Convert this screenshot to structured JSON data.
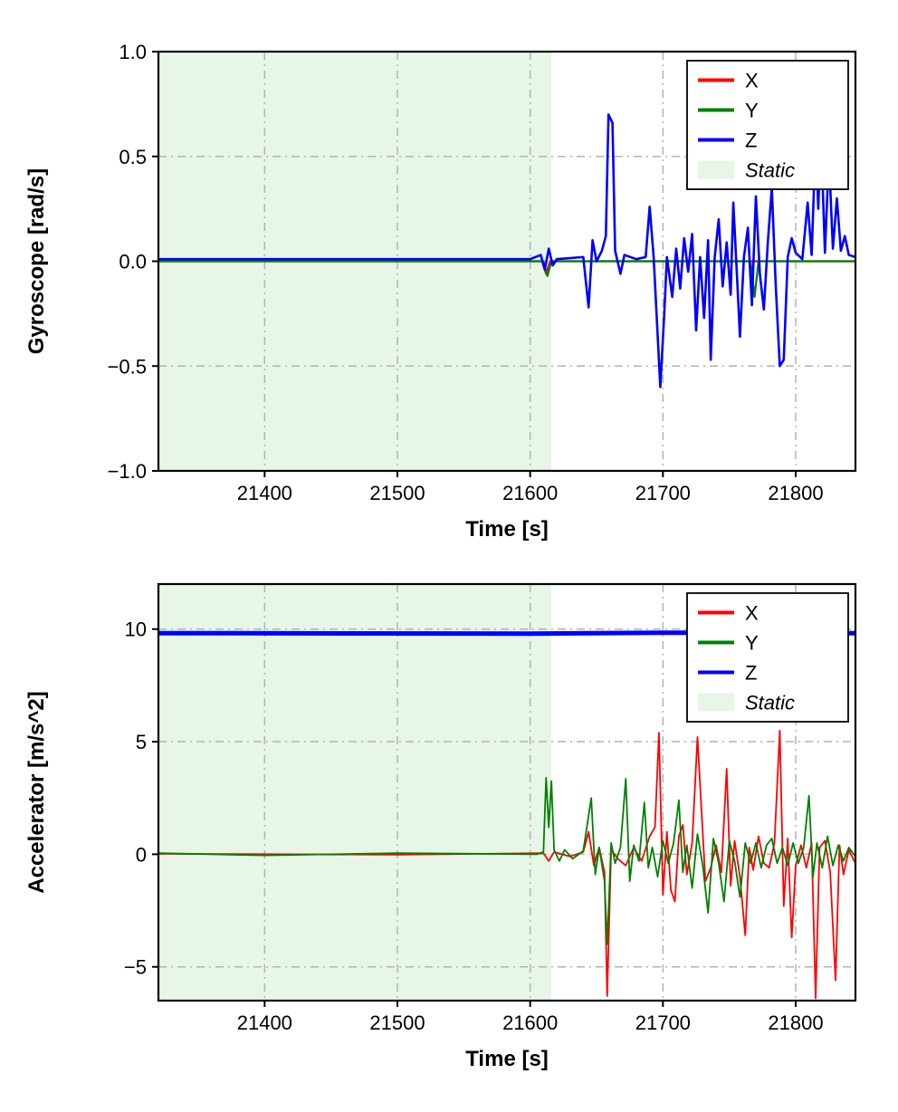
{
  "page": {
    "background": "#ffffff"
  },
  "chart_data": [
    {
      "type": "line",
      "title": "",
      "xlabel": "Time [s]",
      "ylabel": "Gyroscope [rad/s]",
      "xlim": [
        21320,
        21845
      ],
      "ylim": [
        -1.0,
        1.0
      ],
      "xticks": [
        21400,
        21500,
        21600,
        21700,
        21800
      ],
      "xtick_labels": [
        "21400",
        "21500",
        "21600",
        "21700",
        "21800"
      ],
      "yticks": [
        1.0,
        0.5,
        0.0,
        -0.5,
        -1.0
      ],
      "ytick_labels": [
        "1.0",
        "0.5",
        "0.0",
        "−0.5",
        "−1.0"
      ],
      "grid": "dash-dot",
      "grid_color": "#b3b3b3",
      "static_region": {
        "x0": 21320,
        "x1": 21616,
        "color": "#e7f6e7",
        "label": "Static"
      },
      "legend": {
        "position": "upper-right",
        "entries": [
          {
            "label": "X",
            "color": "#ff0000",
            "kind": "line",
            "italic": false
          },
          {
            "label": "Y",
            "color": "#008000",
            "kind": "line",
            "italic": false
          },
          {
            "label": "Z",
            "color": "#0000ff",
            "kind": "line",
            "italic": false
          },
          {
            "label": "Static",
            "color": "#e7f6e7",
            "kind": "patch",
            "italic": true
          }
        ]
      },
      "series": [
        {
          "name": "X",
          "color": "#ff0000",
          "width": 2.2,
          "points": [
            [
              21320,
              0
            ],
            [
              21609,
              0
            ],
            [
              21612,
              -0.06
            ],
            [
              21615,
              0
            ],
            [
              21845,
              0
            ]
          ]
        },
        {
          "name": "Y",
          "color": "#008000",
          "width": 2.2,
          "points": [
            [
              21320,
              0
            ],
            [
              21610,
              0
            ],
            [
              21613,
              -0.07
            ],
            [
              21616,
              0
            ],
            [
              21766,
              0
            ],
            [
              21769,
              -0.17
            ],
            [
              21772,
              0
            ],
            [
              21845,
              0
            ]
          ]
        },
        {
          "name": "Z",
          "color": "#0000ff",
          "width": 2.6,
          "points": [
            [
              21320,
              0.01
            ],
            [
              21500,
              0.01
            ],
            [
              21600,
              0.01
            ],
            [
              21608,
              0.03
            ],
            [
              21611,
              -0.04
            ],
            [
              21614,
              0.06
            ],
            [
              21617,
              -0.02
            ],
            [
              21620,
              0.01
            ],
            [
              21640,
              0.02
            ],
            [
              21644,
              -0.22
            ],
            [
              21647,
              0.1
            ],
            [
              21650,
              0
            ],
            [
              21654,
              0.05
            ],
            [
              21657,
              0.12
            ],
            [
              21659,
              0.7
            ],
            [
              21662,
              0.66
            ],
            [
              21664,
              0.05
            ],
            [
              21668,
              -0.06
            ],
            [
              21671,
              0.03
            ],
            [
              21680,
              0.01
            ],
            [
              21687,
              0.02
            ],
            [
              21690,
              0.26
            ],
            [
              21693,
              0.02
            ],
            [
              21696,
              -0.35
            ],
            [
              21698,
              -0.6
            ],
            [
              21701,
              -0.25
            ],
            [
              21703,
              0.02
            ],
            [
              21707,
              -0.17
            ],
            [
              21710,
              0.06
            ],
            [
              21713,
              -0.13
            ],
            [
              21716,
              0.11
            ],
            [
              21719,
              -0.05
            ],
            [
              21722,
              0.13
            ],
            [
              21725,
              -0.33
            ],
            [
              21728,
              0.02
            ],
            [
              21731,
              -0.27
            ],
            [
              21734,
              0.1
            ],
            [
              21736,
              -0.47
            ],
            [
              21739,
              0.02
            ],
            [
              21742,
              0.2
            ],
            [
              21745,
              -0.12
            ],
            [
              21748,
              0.09
            ],
            [
              21751,
              -0.16
            ],
            [
              21753,
              0.28
            ],
            [
              21756,
              -0.1
            ],
            [
              21758,
              -0.36
            ],
            [
              21761,
              0.02
            ],
            [
              21764,
              0.16
            ],
            [
              21767,
              -0.21
            ],
            [
              21770,
              0.31
            ],
            [
              21773,
              -0.06
            ],
            [
              21776,
              -0.23
            ],
            [
              21779,
              0.09
            ],
            [
              21782,
              0.35
            ],
            [
              21785,
              -0.12
            ],
            [
              21788,
              -0.5
            ],
            [
              21791,
              -0.47
            ],
            [
              21794,
              0.02
            ],
            [
              21797,
              0.11
            ],
            [
              21800,
              0.04
            ],
            [
              21805,
              0.01
            ],
            [
              21809,
              0.28
            ],
            [
              21812,
              0.03
            ],
            [
              21815,
              0.58
            ],
            [
              21817,
              0.25
            ],
            [
              21819,
              0.62
            ],
            [
              21822,
              0.04
            ],
            [
              21825,
              0.5
            ],
            [
              21828,
              0.06
            ],
            [
              21831,
              0.3
            ],
            [
              21834,
              0.05
            ],
            [
              21837,
              0.12
            ],
            [
              21840,
              0.03
            ],
            [
              21845,
              0.02
            ]
          ]
        }
      ]
    },
    {
      "type": "line",
      "title": "",
      "xlabel": "Time [s]",
      "ylabel": "Accelerator [m/s^2]",
      "xlim": [
        21320,
        21845
      ],
      "ylim": [
        -6.5,
        12
      ],
      "xticks": [
        21400,
        21500,
        21600,
        21700,
        21800
      ],
      "xtick_labels": [
        "21400",
        "21500",
        "21600",
        "21700",
        "21800"
      ],
      "yticks": [
        10,
        5,
        0,
        -5
      ],
      "ytick_labels": [
        "10",
        "5",
        "0",
        "−5"
      ],
      "grid": "dash-dot",
      "grid_color": "#b3b3b3",
      "static_region": {
        "x0": 21320,
        "x1": 21616,
        "color": "#e7f6e7",
        "label": "Static"
      },
      "legend": {
        "position": "upper-right",
        "entries": [
          {
            "label": "X",
            "color": "#ff0000",
            "kind": "line",
            "italic": false
          },
          {
            "label": "Y",
            "color": "#008000",
            "kind": "line",
            "italic": false
          },
          {
            "label": "Z",
            "color": "#0000ff",
            "kind": "line",
            "italic": false
          },
          {
            "label": "Static",
            "color": "#e7f6e7",
            "kind": "patch",
            "italic": true
          }
        ]
      },
      "series": [
        {
          "name": "X",
          "color": "#ff0000",
          "width": 1.8,
          "points": [
            [
              21320,
              0.02
            ],
            [
              21500,
              -0.02
            ],
            [
              21610,
              0.05
            ],
            [
              21614,
              -0.3
            ],
            [
              21618,
              0.1
            ],
            [
              21630,
              -0.1
            ],
            [
              21640,
              0.1
            ],
            [
              21644,
              1.0
            ],
            [
              21648,
              -0.5
            ],
            [
              21652,
              0.3
            ],
            [
              21656,
              -0.8
            ],
            [
              21658,
              -6.3
            ],
            [
              21661,
              0.2
            ],
            [
              21666,
              -0.2
            ],
            [
              21672,
              -0.5
            ],
            [
              21678,
              0.3
            ],
            [
              21684,
              -0.3
            ],
            [
              21690,
              0.8
            ],
            [
              21694,
              1.2
            ],
            [
              21697,
              5.4
            ],
            [
              21700,
              -1.8
            ],
            [
              21703,
              1.0
            ],
            [
              21706,
              -1.6
            ],
            [
              21709,
              -2.1
            ],
            [
              21712,
              0.8
            ],
            [
              21715,
              1.3
            ],
            [
              21718,
              -0.9
            ],
            [
              21722,
              0.5
            ],
            [
              21726,
              5.2
            ],
            [
              21729,
              2.0
            ],
            [
              21732,
              -1.2
            ],
            [
              21736,
              -0.6
            ],
            [
              21740,
              0.4
            ],
            [
              21744,
              -0.8
            ],
            [
              21748,
              3.8
            ],
            [
              21751,
              -1.4
            ],
            [
              21754,
              0.6
            ],
            [
              21758,
              -1.0
            ],
            [
              21762,
              -3.6
            ],
            [
              21765,
              0.3
            ],
            [
              21768,
              -0.7
            ],
            [
              21772,
              0.8
            ],
            [
              21776,
              -0.4
            ],
            [
              21780,
              -0.6
            ],
            [
              21784,
              0.5
            ],
            [
              21788,
              5.5
            ],
            [
              21791,
              -2.3
            ],
            [
              21794,
              0.7
            ],
            [
              21797,
              -3.7
            ],
            [
              21800,
              -0.5
            ],
            [
              21804,
              0.4
            ],
            [
              21808,
              -0.6
            ],
            [
              21812,
              0.5
            ],
            [
              21815,
              -6.4
            ],
            [
              21818,
              0.3
            ],
            [
              21822,
              0.6
            ],
            [
              21826,
              -0.8
            ],
            [
              21830,
              -5.6
            ],
            [
              21833,
              0.4
            ],
            [
              21836,
              -0.9
            ],
            [
              21840,
              0.2
            ],
            [
              21845,
              -0.4
            ]
          ]
        },
        {
          "name": "Y",
          "color": "#008000",
          "width": 1.8,
          "points": [
            [
              21320,
              0.05
            ],
            [
              21400,
              -0.05
            ],
            [
              21500,
              0.05
            ],
            [
              21605,
              0
            ],
            [
              21610,
              0.1
            ],
            [
              21612,
              3.4
            ],
            [
              21614,
              1.2
            ],
            [
              21616,
              3.25
            ],
            [
              21618,
              0.2
            ],
            [
              21622,
              -0.3
            ],
            [
              21626,
              0.2
            ],
            [
              21632,
              -0.2
            ],
            [
              21640,
              0.15
            ],
            [
              21646,
              2.5
            ],
            [
              21649,
              -0.9
            ],
            [
              21652,
              0.3
            ],
            [
              21656,
              -1.2
            ],
            [
              21658,
              -4.0
            ],
            [
              21661,
              0.5
            ],
            [
              21664,
              -0.4
            ],
            [
              21668,
              0.3
            ],
            [
              21672,
              3.35
            ],
            [
              21675,
              -1.2
            ],
            [
              21678,
              0.4
            ],
            [
              21682,
              -0.3
            ],
            [
              21686,
              2.3
            ],
            [
              21689,
              -0.6
            ],
            [
              21692,
              0.3
            ],
            [
              21696,
              -1.0
            ],
            [
              21700,
              0.6
            ],
            [
              21704,
              -0.4
            ],
            [
              21708,
              0.5
            ],
            [
              21712,
              2.4
            ],
            [
              21715,
              -0.8
            ],
            [
              21718,
              0.4
            ],
            [
              21722,
              -1.5
            ],
            [
              21726,
              0.9
            ],
            [
              21730,
              -0.5
            ],
            [
              21734,
              -2.6
            ],
            [
              21738,
              0.7
            ],
            [
              21742,
              -0.4
            ],
            [
              21746,
              -2.1
            ],
            [
              21750,
              0.6
            ],
            [
              21754,
              -0.3
            ],
            [
              21758,
              -1.9
            ],
            [
              21762,
              0.5
            ],
            [
              21766,
              -0.4
            ],
            [
              21770,
              0.5
            ],
            [
              21774,
              -0.6
            ],
            [
              21778,
              0.4
            ],
            [
              21782,
              0.7
            ],
            [
              21786,
              -0.4
            ],
            [
              21790,
              0.3
            ],
            [
              21794,
              -0.5
            ],
            [
              21798,
              0.5
            ],
            [
              21802,
              -0.4
            ],
            [
              21806,
              0.3
            ],
            [
              21810,
              2.6
            ],
            [
              21813,
              -1.0
            ],
            [
              21816,
              0.5
            ],
            [
              21820,
              -0.6
            ],
            [
              21824,
              0.8
            ],
            [
              21828,
              -0.5
            ],
            [
              21832,
              0.4
            ],
            [
              21836,
              -0.3
            ],
            [
              21840,
              0.3
            ],
            [
              21845,
              -0.1
            ]
          ]
        },
        {
          "name": "Z",
          "color": "#0000ff",
          "width": 5,
          "points": [
            [
              21320,
              9.82
            ],
            [
              21600,
              9.8
            ],
            [
              21700,
              9.84
            ],
            [
              21845,
              9.82
            ]
          ]
        }
      ]
    }
  ]
}
